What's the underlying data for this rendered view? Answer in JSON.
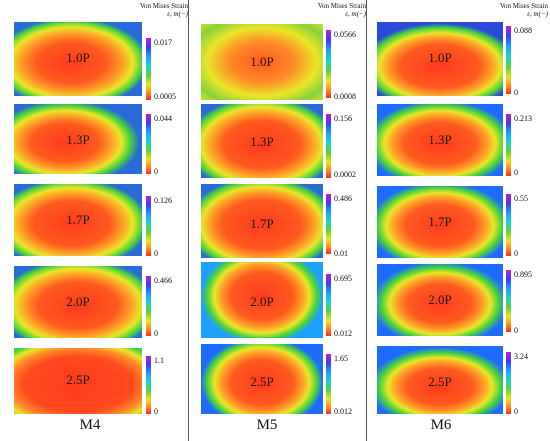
{
  "columns": [
    {
      "name": "M4",
      "header": {
        "title": "Von Mises Strain",
        "unit": "ε, m(−)"
      },
      "panels": [
        {
          "load": "1.0P",
          "max": "0.017",
          "min": "0.0005"
        },
        {
          "load": "1.3P",
          "max": "0.044",
          "min": "0"
        },
        {
          "load": "1.7P",
          "max": "0.126",
          "min": "0"
        },
        {
          "load": "2.0P",
          "max": "0.466",
          "min": "0"
        },
        {
          "load": "2.5P",
          "max": "1.1",
          "min": "0"
        }
      ]
    },
    {
      "name": "M5",
      "header": {
        "title": "Von Mises Strain",
        "unit": "ε, m(−)"
      },
      "panels": [
        {
          "load": "1.0P",
          "max": "0.0566",
          "min": "0.0008"
        },
        {
          "load": "1.3P",
          "max": "0.156",
          "min": "0.0002"
        },
        {
          "load": "1.7P",
          "max": "0.486",
          "min": "0.01"
        },
        {
          "load": "2.0P",
          "max": "0.695",
          "min": "0.012"
        },
        {
          "load": "2.5P",
          "max": "1.65",
          "min": "0.012"
        }
      ]
    },
    {
      "name": "M6",
      "header": {
        "title": "Von Mises Strain",
        "unit": "ε, m(−)"
      },
      "panels": [
        {
          "load": "1.0P",
          "max": "0.088",
          "min": "0"
        },
        {
          "load": "1.3P",
          "max": "0.213",
          "min": "0"
        },
        {
          "load": "1.7P",
          "max": "0.55",
          "min": "0"
        },
        {
          "load": "2.0P",
          "max": "0.895",
          "min": "0"
        },
        {
          "load": "2.5P",
          "max": "3.24",
          "min": "0"
        }
      ]
    }
  ]
}
